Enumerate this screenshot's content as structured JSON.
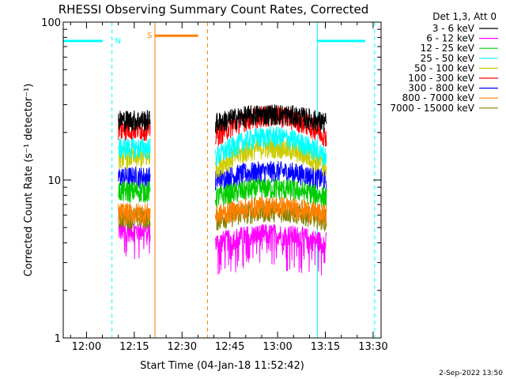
{
  "chart_data": {
    "type": "line",
    "title": "RHESSI Observing Summary Count Rates, Corrected",
    "xlabel": "Start Time (04-Jan-18 11:52:42)",
    "ylabel": "Corrected Count Rate (s⁻¹ detector⁻¹)",
    "y_scale": "log",
    "ylim": [
      1,
      100
    ],
    "xlim_minutes": [
      "11:52:42",
      "13:32:30"
    ],
    "x_ticks": [
      {
        "label": "12:00",
        "t": "12:00"
      },
      {
        "label": "12:15",
        "t": "12:15"
      },
      {
        "label": "12:30",
        "t": "12:30"
      },
      {
        "label": "12:45",
        "t": "12:45"
      },
      {
        "label": "13:00",
        "t": "13:00"
      },
      {
        "label": "13:15",
        "t": "13:15"
      },
      {
        "label": "13:30",
        "t": "13:30"
      }
    ],
    "y_ticks": [
      {
        "label": "1",
        "v": 1
      },
      {
        "label": "10",
        "v": 10
      },
      {
        "label": "100",
        "v": 100
      }
    ],
    "legend_title": "Det 1,3, Att 0",
    "legend_placement": "right",
    "series": [
      {
        "name": "3 - 6 keV",
        "color": "#000000",
        "level": 24,
        "level2": 23
      },
      {
        "name": "6 - 12 keV",
        "color": "#ff00ff",
        "level": 4.8,
        "level2": 4.0
      },
      {
        "name": "12 - 25 keV",
        "color": "#00cc00",
        "level": 8.5,
        "level2": 7.8
      },
      {
        "name": "25 - 50 keV",
        "color": "#00ffff",
        "level": 16,
        "level2": 14
      },
      {
        "name": "50 - 100 keV",
        "color": "#cccc00",
        "level": 14,
        "level2": 12
      },
      {
        "name": "100 - 300 keV",
        "color": "#ff0000",
        "level": 21,
        "level2": 19
      },
      {
        "name": "300 - 800 keV",
        "color": "#0000ff",
        "level": 10.5,
        "level2": 10
      },
      {
        "name": "800 - 7000 keV",
        "color": "#ff8000",
        "level": 6.2,
        "level2": 6.0
      },
      {
        "name": "7000 - 15000 keV",
        "color": "#808000",
        "level": 5.8,
        "level2": 5.6
      }
    ],
    "data_segments": [
      {
        "start": "12:10:00",
        "end": "12:20:00"
      },
      {
        "start": "12:40:30",
        "end": "13:15:20"
      }
    ],
    "annotations": [
      {
        "label": "N",
        "type": "night",
        "color": "#00ffff",
        "start": "11:52:42",
        "end": "12:08:00",
        "level": 76
      },
      {
        "label": "",
        "type": "night",
        "color": "#00ffff",
        "start": "13:12:30",
        "end": "13:30:30",
        "level": 76
      },
      {
        "label": "S",
        "type": "saa",
        "color": "#ff8000",
        "start": "12:21:30",
        "end": "12:38:00",
        "level": 82
      }
    ]
  },
  "footer": {
    "timestamp": "2-Sep-2022 13:50"
  }
}
